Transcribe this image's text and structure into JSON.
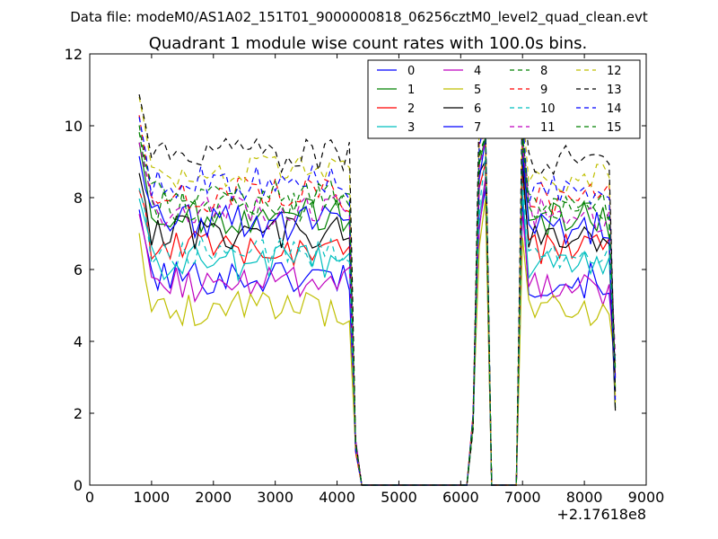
{
  "chart_data": {
    "type": "line",
    "suptitle": "Data file: modeM0/AS1A02_151T01_9000000818_06256cztM0_level2_quad_clean.evt",
    "title": "Quadrant 1 module wise count rates with 100.0s bins.",
    "xlabel": "",
    "ylabel": "",
    "x_offset_label": "+2.17618e8",
    "xlim": [
      0,
      9000
    ],
    "ylim": [
      0,
      12
    ],
    "xticks": [
      0,
      1000,
      2000,
      3000,
      4000,
      5000,
      6000,
      7000,
      8000,
      9000
    ],
    "yticks": [
      0,
      2,
      4,
      6,
      8,
      10,
      12
    ],
    "grid": false,
    "legend": {
      "position": "top-right",
      "columns": 4
    },
    "segments": [
      {
        "x_start": 800,
        "x_end": 4200
      },
      {
        "x_start": 6100,
        "x_end": 6500
      },
      {
        "x_start": 6900,
        "x_end": 8500
      }
    ],
    "series": [
      {
        "name": "0",
        "color": "#0000ff",
        "dash": "solid",
        "level": 5.8
      },
      {
        "name": "1",
        "color": "#008000",
        "dash": "solid",
        "level": 7.5
      },
      {
        "name": "2",
        "color": "#ff0000",
        "dash": "solid",
        "level": 6.6
      },
      {
        "name": "3",
        "color": "#00bfbf",
        "dash": "solid",
        "level": 6.2
      },
      {
        "name": "4",
        "color": "#bf00bf",
        "dash": "solid",
        "level": 5.6
      },
      {
        "name": "5",
        "color": "#bfbf00",
        "dash": "solid",
        "level": 4.9
      },
      {
        "name": "6",
        "color": "#000000",
        "dash": "solid",
        "level": 7.0
      },
      {
        "name": "7",
        "color": "#0000ff",
        "dash": "solid",
        "level": 7.3
      },
      {
        "name": "8",
        "color": "#008000",
        "dash": "dashed",
        "level": 7.8
      },
      {
        "name": "9",
        "color": "#ff0000",
        "dash": "dashed",
        "level": 8.1
      },
      {
        "name": "10",
        "color": "#00bfbf",
        "dash": "dashed",
        "level": 6.5
      },
      {
        "name": "11",
        "color": "#bf00bf",
        "dash": "dashed",
        "level": 7.6
      },
      {
        "name": "12",
        "color": "#bfbf00",
        "dash": "dashed",
        "level": 8.7
      },
      {
        "name": "13",
        "color": "#000000",
        "dash": "dashed",
        "level": 9.2
      },
      {
        "name": "14",
        "color": "#0000ff",
        "dash": "dashed",
        "level": 8.4
      },
      {
        "name": "15",
        "color": "#008000",
        "dash": "dashed",
        "level": 8.0
      }
    ]
  }
}
